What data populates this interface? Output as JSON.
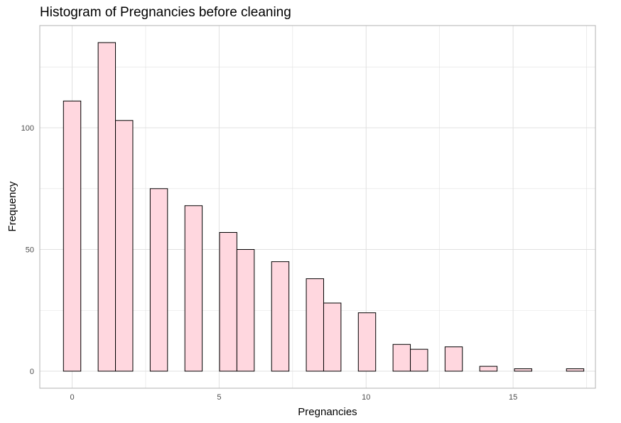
{
  "chart_data": {
    "type": "bar",
    "title": "Histogram of Pregnancies before cleaning",
    "xlabel": "Pregnancies",
    "ylabel": "Frequency",
    "bin_width": 0.59,
    "x_ticks": [
      0,
      5,
      10,
      15
    ],
    "y_ticks": [
      0,
      50,
      100
    ],
    "xlim": [
      -1.1,
      17.8
    ],
    "ylim": [
      -7,
      142
    ],
    "grid": true,
    "colors": {
      "fill": "#ffd7df",
      "stroke": "#000000",
      "grid": "#e0e0e0",
      "panel_border": "#b3b3b3"
    },
    "bins": [
      {
        "x": 0.0,
        "count": 111
      },
      {
        "x": 1.18,
        "count": 135
      },
      {
        "x": 1.77,
        "count": 103
      },
      {
        "x": 2.95,
        "count": 75
      },
      {
        "x": 4.13,
        "count": 68
      },
      {
        "x": 5.31,
        "count": 57
      },
      {
        "x": 5.9,
        "count": 50
      },
      {
        "x": 7.08,
        "count": 45
      },
      {
        "x": 8.26,
        "count": 38
      },
      {
        "x": 8.85,
        "count": 28
      },
      {
        "x": 10.03,
        "count": 24
      },
      {
        "x": 11.21,
        "count": 11
      },
      {
        "x": 11.8,
        "count": 9
      },
      {
        "x": 12.98,
        "count": 10
      },
      {
        "x": 14.16,
        "count": 2
      },
      {
        "x": 15.34,
        "count": 1
      },
      {
        "x": 17.11,
        "count": 1
      }
    ]
  }
}
